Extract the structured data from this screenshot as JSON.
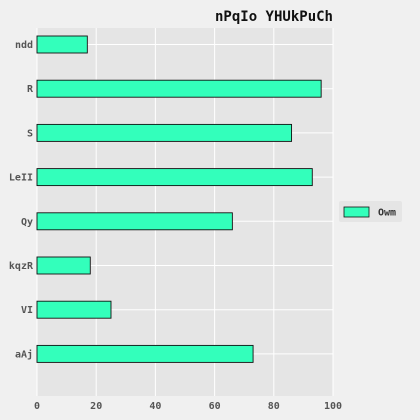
{
  "chart_data": {
    "type": "bar",
    "orientation": "horizontal",
    "title": "nPqIo YHUkPuCh",
    "xlabel": "",
    "ylabel": "",
    "categories": [
      "ndd",
      "R",
      "S",
      "LeII",
      "Qy",
      "kqzR",
      "VI",
      "aAj"
    ],
    "series": [
      {
        "name": "Owm",
        "values": [
          17,
          96,
          86,
          93,
          66,
          18,
          25,
          73
        ]
      }
    ],
    "xlim": [
      0,
      100
    ],
    "xticks": [
      0,
      20,
      40,
      60,
      80,
      100
    ],
    "grid": true,
    "legend_position": "right",
    "colors": {
      "bar_fill": "#33ffbb",
      "bar_edge": "#111111",
      "plot_background": "#e5e5e5",
      "figure_background": "#f0f0f0",
      "grid": "#ffffff"
    }
  }
}
